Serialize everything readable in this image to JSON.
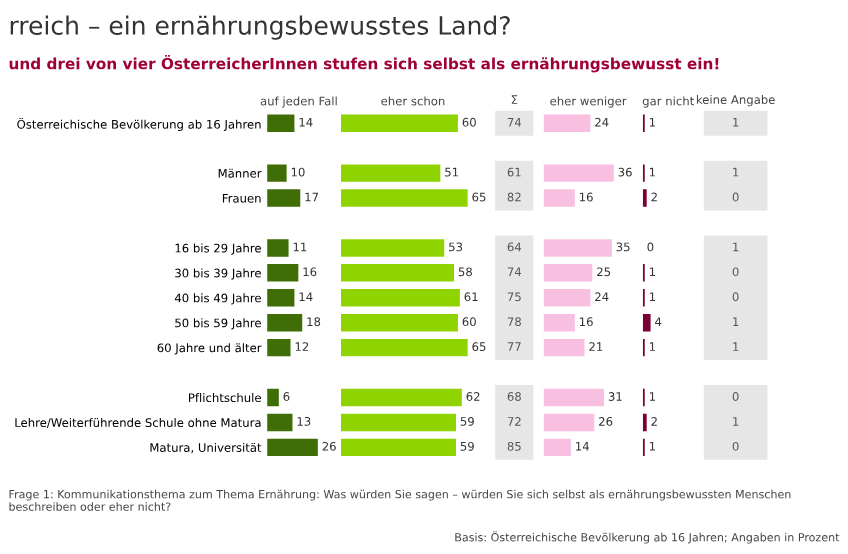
{
  "chart_data": [
    {
      "type": "bar",
      "orientation": "horizontal",
      "title": "rreich – ein ernährungsbewusstes Land?",
      "subtitle": "und drei von vier ÖsterreicherInnen stufen sich selbst als ernährungsbewusst ein!",
      "xlabel": "auf jeden Fall",
      "annotations": [
        "Frage 1: Kommunikationsthema zum Thema Ernährung: Was würden Sie sagen – würden Sie sich selbst als ernährungsbewussten Menschen beschreiben oder eher nicht?",
        "Basis: Österreichische Bevölkerung ab 16 Jahren; Angaben in Prozent"
      ],
      "categories": [
        "Österreichische Bevölkerung ab 16 Jahren",
        null,
        "Männer",
        "Frauen",
        null,
        "16 bis 29 Jahre",
        "30 bis 39 Jahre",
        "40 bis 49 Jahre",
        "50 bis 59 Jahre",
        "60 Jahre und älter",
        null,
        "Pflichtschule",
        "Lehre/Weiterführende Schule ohne Matura",
        "Matura, Universität"
      ],
      "series": [
        {
          "color": "#3f6e06",
          "values": [
            14,
            null,
            10,
            17,
            null,
            11,
            16,
            14,
            18,
            12,
            null,
            6,
            13,
            26
          ]
        }
      ],
      "data_labels": true
    },
    {
      "type": "bar",
      "orientation": "horizontal",
      "xlabel": "eher schon",
      "categories": [
        null,
        null,
        null,
        null,
        null,
        null,
        null,
        null,
        null,
        null,
        null,
        null,
        null,
        null
      ],
      "series": [
        {
          "color": "#8fd400",
          "values": [
            60,
            null,
            51,
            65,
            null,
            53,
            58,
            61,
            60,
            65,
            null,
            62,
            59,
            59
          ]
        }
      ],
      "data_labels": true
    },
    {
      "type": "other",
      "title": "Σ",
      "annotations": [
        "74"
      ]
    },
    {
      "type": "other",
      "annotations": [
        "61",
        "82"
      ]
    },
    {
      "type": "other",
      "annotations": [
        "64",
        "74",
        "75",
        "78",
        "77"
      ]
    },
    {
      "type": "other",
      "annotations": [
        "68",
        "72",
        "85"
      ]
    },
    {
      "type": "bar",
      "orientation": "horizontal",
      "xlabel": "eher weniger",
      "categories": [
        null,
        null,
        null,
        null,
        null,
        null,
        null,
        null,
        null,
        null,
        null,
        null,
        null,
        null
      ],
      "series": [
        {
          "color": "#f8bfe0",
          "values": [
            24,
            null,
            36,
            16,
            null,
            35,
            25,
            24,
            16,
            21,
            null,
            31,
            26,
            14
          ]
        }
      ],
      "data_labels": true
    },
    {
      "type": "bar",
      "orientation": "horizontal",
      "xlabel": "gar nicht",
      "categories": [
        null,
        null,
        null,
        null,
        null,
        null,
        null,
        null,
        null,
        null,
        null,
        null,
        null,
        null
      ],
      "series": [
        {
          "color": "#7a0035",
          "values": [
            1,
            null,
            1,
            2,
            null,
            0,
            1,
            1,
            4,
            1,
            null,
            1,
            2,
            1
          ]
        }
      ],
      "data_labels": true
    },
    {
      "type": "other",
      "title": "keine Angabe",
      "annotations": [
        "1"
      ]
    },
    {
      "type": "other",
      "annotations": [
        "1",
        "0"
      ]
    },
    {
      "type": "other",
      "annotations": [
        "1",
        "0",
        "0",
        "1",
        "1"
      ]
    },
    {
      "type": "other",
      "annotations": [
        "0",
        "1",
        "0"
      ]
    }
  ]
}
